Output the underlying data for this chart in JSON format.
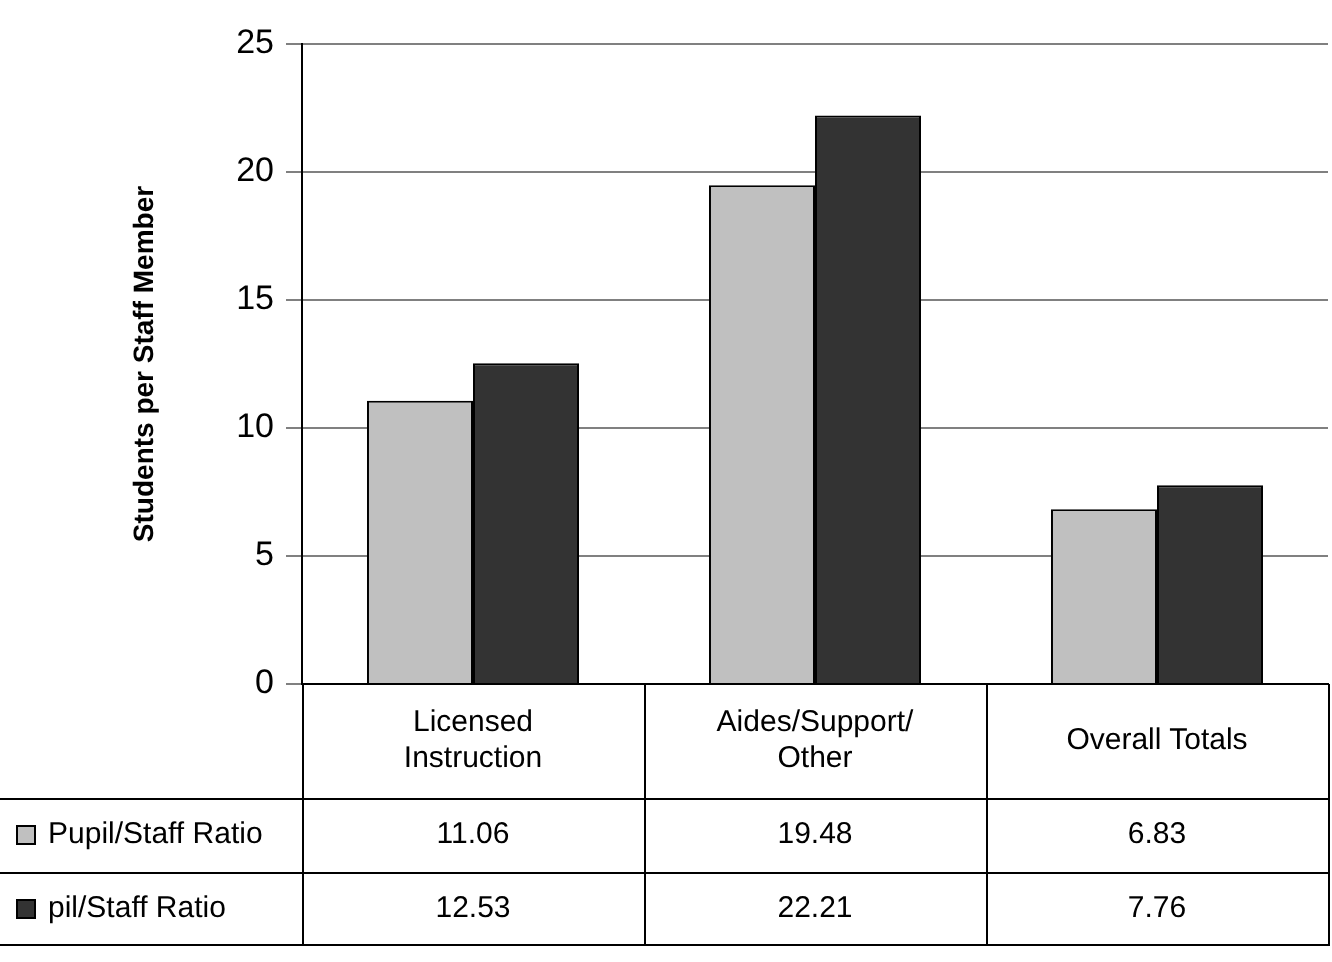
{
  "chart_data": {
    "type": "bar",
    "ylabel": "Students per Staff Member",
    "categories": [
      "Licensed Instruction",
      "Aides/Support/ Other",
      "Overall Totals"
    ],
    "series": [
      {
        "name": "Pupil/Staff Ratio",
        "color": "#c0c0c0",
        "values": [
          11.06,
          19.48,
          6.83
        ]
      },
      {
        "name": "pil/Staff Ratio",
        "color": "#333333",
        "values": [
          12.53,
          22.21,
          7.76
        ]
      }
    ],
    "ylim": [
      0,
      25
    ],
    "yticks": [
      0,
      5,
      10,
      15,
      20,
      25
    ],
    "grid": "y",
    "data_labels": true,
    "legend": "bottom left"
  }
}
